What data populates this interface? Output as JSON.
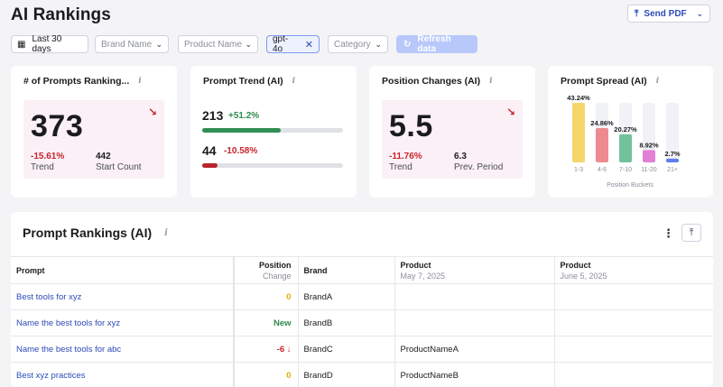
{
  "header": {
    "title": "AI Rankings",
    "send_pdf_label": "Send PDF"
  },
  "filters": {
    "date_range": "Last 30 days",
    "brand_placeholder": "Brand Name",
    "product_placeholder": "Product Name",
    "model_chip": "gpt-4o",
    "category_placeholder": "Category",
    "refresh_label": "Refresh data"
  },
  "cards": {
    "prompts_ranking": {
      "title": "# of Prompts Ranking...",
      "value": "373",
      "trend_value": "-15.61%",
      "trend_label": "Trend",
      "start_value": "442",
      "start_label": "Start Count"
    },
    "prompt_trend": {
      "title": "Prompt Trend (AI)",
      "up_value": "213",
      "up_pct": "+51.2%",
      "up_fill": 0.56,
      "down_value": "44",
      "down_pct": "-10.58%",
      "down_fill": 0.11
    },
    "position_changes": {
      "title": "Position Changes (AI)",
      "value": "5.5",
      "trend_value": "-11.76%",
      "trend_label": "Trend",
      "prev_value": "6.3",
      "prev_label": "Prev. Period"
    },
    "prompt_spread": {
      "title": "Prompt Spread (AI)"
    }
  },
  "chart_data": {
    "type": "bar",
    "categories": [
      "1-3",
      "4-6",
      "7-10",
      "11-20",
      "21+"
    ],
    "values": [
      43.24,
      24.86,
      20.27,
      8.92,
      2.7
    ],
    "labels": [
      "43.24%",
      "24.86%",
      "20.27%",
      "8.92%",
      "2.7%"
    ],
    "colors": [
      "#f6d66b",
      "#ee8a8f",
      "#6fc29a",
      "#e27fd6",
      "#5b7ef0"
    ],
    "xlabel": "Position Buckets",
    "ylim": [
      0,
      43.24
    ]
  },
  "table": {
    "title": "Prompt Rankings (AI)",
    "headers": {
      "prompt": "Prompt",
      "position": "Position",
      "position_sub": "Change",
      "brand": "Brand",
      "product1": "Product",
      "product1_date": "May 7, 2025",
      "product2": "Product",
      "product2_date": "June 5, 2025"
    },
    "rows": [
      {
        "prompt": "Best tools for xyz",
        "change": "0",
        "brand": "BrandA",
        "product1": "",
        "product2": ""
      },
      {
        "prompt": "Name the best tools for xyz",
        "change": "New",
        "brand": "BrandB",
        "product1": "",
        "product2": ""
      },
      {
        "prompt": "Name the best tools for abc",
        "change": "-6 ↓",
        "brand": "BrandC",
        "product1": "ProductNameA",
        "product2": ""
      },
      {
        "prompt": "Best xyz practices",
        "change": "0",
        "brand": "BrandD",
        "product1": "ProductNameB",
        "product2": ""
      }
    ]
  }
}
